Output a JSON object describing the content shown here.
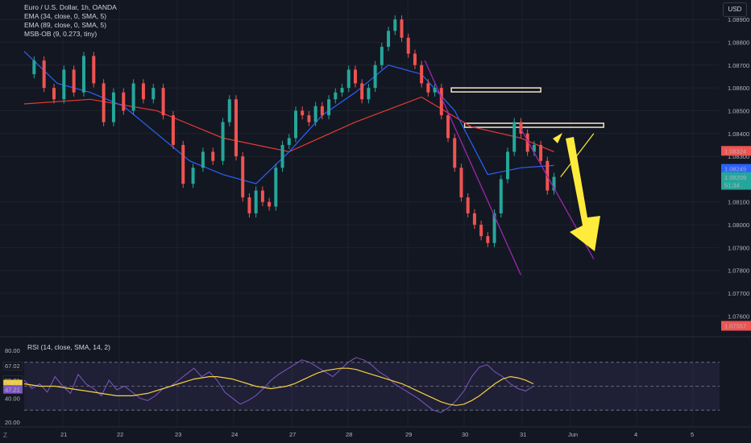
{
  "window": {
    "currency_button": "USD",
    "settings_label": "Z"
  },
  "legend": [
    "Euro / U.S. Dollar, 1h, OANDA",
    "EMA (34, close, 0, SMA, 5)",
    "EMA (89, close, 0, SMA, 5)",
    "MSB-OB (9, 0.273, tiny)"
  ],
  "rsi_legend": "RSI (14, close, SMA, 14, 2)",
  "colors": {
    "background": "#131722",
    "up": "#26a69a",
    "down": "#ef5350",
    "ema34": "#2962ff",
    "ema89": "#e53935",
    "trendline": "#9c27b0",
    "rsi": "#7e57c2",
    "rsi_ma": "#f5d142",
    "arrow": "#ffeb3b"
  },
  "chart_data": {
    "type": "line",
    "title": "Euro / U.S. Dollar, 1h, OANDA",
    "x_ticks": [
      "21",
      "22",
      "23",
      "24",
      "27",
      "28",
      "29",
      "30",
      "31",
      "Jun",
      "4",
      "5"
    ],
    "price_axis_ticks": [
      "1.08900",
      "1.08800",
      "1.08700",
      "1.08600",
      "1.08500",
      "1.08400",
      "1.08300",
      "1.08100",
      "1.08000",
      "1.07900",
      "1.07800",
      "1.07700",
      "1.07600"
    ],
    "price_range": [
      1.0752,
      1.0895
    ],
    "price_labels": [
      {
        "text": "1.08324",
        "value": 1.08324,
        "color": "#ef5350"
      },
      {
        "text": "1.08245",
        "value": 1.08245,
        "color": "#2962ff"
      },
      {
        "text": "1.08209",
        "value": 1.08209,
        "color": "#26a69a"
      },
      {
        "text": "51:34",
        "value": 1.08175,
        "color": "#26a69a"
      },
      {
        "text": "1.07557",
        "value": 1.07557,
        "color": "#ef5350"
      }
    ],
    "series": [
      {
        "name": "EURUSD",
        "values": [
          [
            0,
            1.0866
          ],
          [
            3,
            1.0872
          ],
          [
            6,
            1.086
          ],
          [
            9,
            1.0855
          ],
          [
            12,
            1.0868
          ],
          [
            15,
            1.0858
          ],
          [
            18,
            1.0874
          ],
          [
            21,
            1.0862
          ],
          [
            24,
            1.0845
          ],
          [
            27,
            1.0858
          ],
          [
            30,
            1.085
          ],
          [
            33,
            1.0862
          ],
          [
            36,
            1.0855
          ],
          [
            39,
            1.086
          ],
          [
            42,
            1.0848
          ],
          [
            45,
            1.0835
          ],
          [
            48,
            1.0818
          ],
          [
            51,
            1.0825
          ],
          [
            54,
            1.0832
          ],
          [
            57,
            1.0828
          ],
          [
            60,
            1.0845
          ],
          [
            62,
            1.0855
          ],
          [
            64,
            1.083
          ],
          [
            66,
            1.0812
          ],
          [
            68,
            1.0805
          ],
          [
            70,
            1.0815
          ],
          [
            72,
            1.081
          ],
          [
            74,
            1.0808
          ],
          [
            76,
            1.0825
          ],
          [
            78,
            1.0835
          ],
          [
            80,
            1.0838
          ],
          [
            82,
            1.085
          ],
          [
            84,
            1.0848
          ],
          [
            86,
            1.0845
          ],
          [
            88,
            1.0852
          ],
          [
            90,
            1.0848
          ],
          [
            92,
            1.0855
          ],
          [
            94,
            1.0858
          ],
          [
            96,
            1.086
          ],
          [
            98,
            1.0868
          ],
          [
            100,
            1.0862
          ],
          [
            102,
            1.0855
          ],
          [
            104,
            1.086
          ],
          [
            106,
            1.087
          ],
          [
            108,
            1.0878
          ],
          [
            110,
            1.0885
          ],
          [
            112,
            1.089
          ],
          [
            114,
            1.0882
          ],
          [
            116,
            1.0875
          ],
          [
            118,
            1.087
          ],
          [
            120,
            1.0862
          ],
          [
            122,
            1.0858
          ],
          [
            124,
            1.086
          ],
          [
            126,
            1.0848
          ],
          [
            128,
            1.0838
          ],
          [
            130,
            1.0825
          ],
          [
            132,
            1.0812
          ],
          [
            134,
            1.0805
          ],
          [
            136,
            1.08
          ],
          [
            138,
            1.0795
          ],
          [
            140,
            1.0792
          ],
          [
            142,
            1.0805
          ],
          [
            144,
            1.082
          ],
          [
            146,
            1.0832
          ],
          [
            148,
            1.0845
          ],
          [
            150,
            1.084
          ],
          [
            152,
            1.0832
          ],
          [
            154,
            1.0835
          ],
          [
            156,
            1.0828
          ],
          [
            158,
            1.0815
          ],
          [
            160,
            1.0821
          ]
        ]
      },
      {
        "name": "EMA (34, close, 0, SMA, 5)",
        "values": [
          [
            0,
            1.0876
          ],
          [
            10,
            1.0862
          ],
          [
            20,
            1.0858
          ],
          [
            30,
            1.0852
          ],
          [
            40,
            1.084
          ],
          [
            50,
            1.0828
          ],
          [
            60,
            1.0822
          ],
          [
            70,
            1.0818
          ],
          [
            80,
            1.0832
          ],
          [
            90,
            1.0848
          ],
          [
            100,
            1.0858
          ],
          [
            110,
            1.087
          ],
          [
            120,
            1.0866
          ],
          [
            130,
            1.085
          ],
          [
            140,
            1.0822
          ],
          [
            150,
            1.0825
          ],
          [
            160,
            1.0826
          ]
        ]
      },
      {
        "name": "EMA (89, close, 0, SMA, 5)",
        "values": [
          [
            0,
            1.0853
          ],
          [
            20,
            1.0855
          ],
          [
            40,
            1.085
          ],
          [
            60,
            1.0838
          ],
          [
            80,
            1.0832
          ],
          [
            100,
            1.0845
          ],
          [
            120,
            1.0856
          ],
          [
            135,
            1.0843
          ],
          [
            150,
            1.0838
          ],
          [
            160,
            1.0832
          ]
        ]
      }
    ],
    "boxes": [
      {
        "from": 129,
        "to": 156,
        "top": 1.086,
        "bottom": 1.08585
      },
      {
        "from": 133,
        "to": 175,
        "top": 1.08445,
        "bottom": 1.0843
      }
    ],
    "rsi": {
      "label": "RSI (14, close, SMA, 14, 2)",
      "axis_ticks": [
        "80.00",
        "40.00",
        "20.00"
      ],
      "tick_values": [
        80,
        40,
        20
      ],
      "current_labels": [
        {
          "text": "67.02",
          "value": 67.02,
          "color": "#131722"
        },
        {
          "text": "55.21",
          "value": 55.21,
          "color": "#131722"
        },
        {
          "text": "52.12",
          "value": 52.12,
          "color": "#f5d142"
        },
        {
          "text": "47.21",
          "value": 47.21,
          "color": "#7e57c2"
        }
      ],
      "range": [
        18,
        82
      ],
      "upper_band": 70,
      "lower_band": 30,
      "middle_band": 50,
      "rsi_values": [
        55,
        48,
        52,
        45,
        58,
        50,
        44,
        60,
        52,
        48,
        42,
        55,
        47,
        50,
        45,
        40,
        38,
        42,
        48,
        50,
        55,
        60,
        65,
        58,
        62,
        55,
        45,
        40,
        35,
        38,
        42,
        48,
        55,
        60,
        64,
        68,
        72,
        70,
        66,
        62,
        58,
        64,
        70,
        74,
        72,
        68,
        62,
        58,
        52,
        48,
        44,
        40,
        35,
        30,
        28,
        32,
        38,
        46,
        58,
        66,
        68,
        62,
        58,
        52,
        48,
        46,
        50
      ],
      "ma_values": [
        52,
        51,
        50,
        50,
        50,
        49,
        48,
        47,
        46,
        45,
        44,
        43,
        42,
        42,
        42,
        43,
        44,
        46,
        48,
        50,
        52,
        54,
        56,
        57,
        58,
        58,
        57,
        56,
        54,
        52,
        50,
        49,
        48,
        49,
        50,
        52,
        55,
        58,
        61,
        63,
        64,
        65,
        65,
        64,
        62,
        60,
        58,
        56,
        54,
        52,
        49,
        46,
        43,
        40,
        37,
        35,
        34,
        35,
        38,
        42,
        47,
        52,
        56,
        58,
        57,
        55,
        52
      ]
    }
  }
}
